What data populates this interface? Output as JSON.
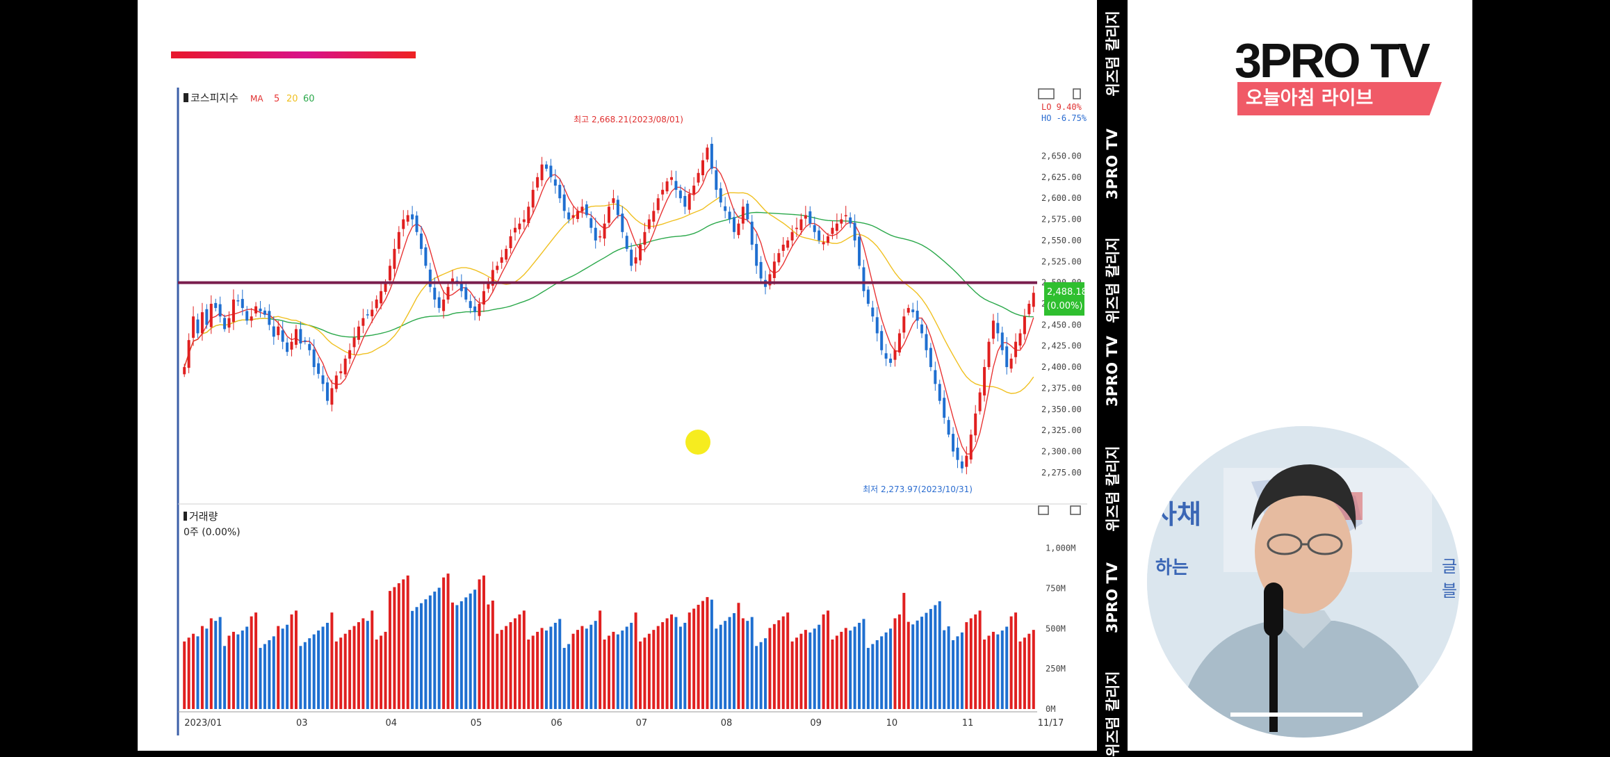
{
  "strip_texts": [
    "위즈덤 칼리지",
    "3PRO TV",
    "위즈덤 칼리지",
    "3PRO TV",
    "위즈덤 칼리지",
    "3PRO TV",
    "위즈덤 칼리지"
  ],
  "logo": {
    "main": "3PRO TV",
    "sub": "오늘아침 라이브"
  },
  "video": {
    "sign1": "사채",
    "sign2": "하는",
    "sign3": "글",
    "sign4": "블"
  },
  "colors": {
    "up": "#e02020",
    "down": "#1f6fd0",
    "ma5": "#e83535",
    "ma20": "#f0c020",
    "ma60": "#2aa84a",
    "resistance": "#7a1e4e"
  },
  "chart_data": {
    "type": "candlestick",
    "title": "코스피지수",
    "legend": {
      "label": "MA",
      "periods": [
        "5",
        "20",
        "60"
      ]
    },
    "price_axis": {
      "ylim": [
        2265,
        2685
      ],
      "ticks": [
        "2,650.00",
        "2,625.00",
        "2,600.00",
        "2,575.00",
        "2,550.00",
        "2,525.00",
        "2,500.00",
        "2,475.00",
        "2,450.00",
        "2,425.00",
        "2,400.00",
        "2,375.00",
        "2,350.00",
        "2,325.00",
        "2,300.00",
        "2,275.00"
      ],
      "tick_values": [
        2650,
        2625,
        2600,
        2575,
        2550,
        2525,
        2500,
        2475,
        2450,
        2425,
        2400,
        2375,
        2350,
        2325,
        2300,
        2275
      ]
    },
    "x_axis": {
      "labels": [
        "2023/01",
        "03",
        "04",
        "05",
        "06",
        "07",
        "08",
        "09",
        "10",
        "11",
        "11/17"
      ],
      "label_idx": [
        0,
        25,
        45,
        64,
        82,
        101,
        120,
        140,
        157,
        174,
        190
      ]
    },
    "high_annotation": "최고 2,668.21(2023/08/01)",
    "low_annotation": "최저 2,273.97(2023/10/31)",
    "corner_values": {
      "lo": "LO  9.40%",
      "hi": "HO  -6.75%"
    },
    "current": {
      "price": "2,488.18",
      "change": "(0.00%)"
    },
    "resistance_level": 2500,
    "closes": [
      2400,
      2432,
      2460,
      2440,
      2465,
      2450,
      2475,
      2470,
      2460,
      2445,
      2458,
      2480,
      2478,
      2470,
      2455,
      2460,
      2472,
      2466,
      2462,
      2450,
      2436,
      2448,
      2430,
      2418,
      2430,
      2445,
      2428,
      2430,
      2420,
      2400,
      2392,
      2380,
      2360,
      2375,
      2390,
      2395,
      2410,
      2420,
      2435,
      2448,
      2458,
      2462,
      2468,
      2480,
      2490,
      2500,
      2520,
      2540,
      2560,
      2575,
      2580,
      2575,
      2560,
      2540,
      2520,
      2495,
      2480,
      2470,
      2480,
      2495,
      2505,
      2500,
      2490,
      2480,
      2470,
      2465,
      2475,
      2490,
      2500,
      2515,
      2520,
      2530,
      2540,
      2555,
      2565,
      2570,
      2575,
      2590,
      2610,
      2625,
      2640,
      2635,
      2625,
      2615,
      2600,
      2585,
      2575,
      2580,
      2585,
      2590,
      2580,
      2565,
      2550,
      2555,
      2570,
      2590,
      2600,
      2580,
      2560,
      2540,
      2520,
      2530,
      2545,
      2560,
      2575,
      2585,
      2600,
      2610,
      2620,
      2625,
      2610,
      2600,
      2590,
      2605,
      2615,
      2630,
      2645,
      2660,
      2635,
      2610,
      2595,
      2585,
      2575,
      2560,
      2570,
      2590,
      2575,
      2545,
      2520,
      2505,
      2495,
      2510,
      2525,
      2535,
      2545,
      2550,
      2560,
      2565,
      2575,
      2580,
      2570,
      2560,
      2550,
      2548,
      2555,
      2565,
      2570,
      2575,
      2580,
      2570,
      2550,
      2520,
      2490,
      2475,
      2460,
      2440,
      2420,
      2410,
      2405,
      2420,
      2440,
      2460,
      2470,
      2465,
      2455,
      2440,
      2420,
      2400,
      2380,
      2360,
      2340,
      2320,
      2300,
      2290,
      2280,
      2295,
      2320,
      2345,
      2370,
      2400,
      2430,
      2455,
      2440,
      2420,
      2400,
      2410,
      2430,
      2440,
      2460,
      2475,
      2488
    ],
    "volume_axis": {
      "ylim": [
        0,
        1050
      ],
      "ticks": [
        "1,000M",
        "750M",
        "500M",
        "250M",
        "0M"
      ],
      "tick_values": [
        1000,
        750,
        500,
        250,
        0
      ]
    },
    "volume_title": "거래량",
    "volume_readout": "0주 (0.00%)"
  }
}
